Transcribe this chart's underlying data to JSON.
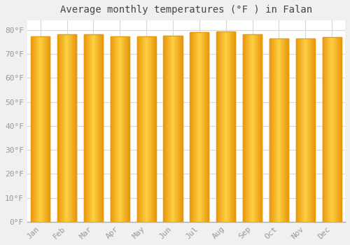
{
  "months": [
    "Jan",
    "Feb",
    "Mar",
    "Apr",
    "May",
    "Jun",
    "Jul",
    "Aug",
    "Sep",
    "Oct",
    "Nov",
    "Dec"
  ],
  "values": [
    77.2,
    78.3,
    78.3,
    77.2,
    77.4,
    77.5,
    79.0,
    79.3,
    78.1,
    76.3,
    76.3,
    77.0
  ],
  "bar_color_edge": "#E8980A",
  "bar_color_center": "#FFD045",
  "bar_color_mid": "#FFAA10",
  "background_color": "#F0F0F0",
  "plot_bg_color": "#FFFFFF",
  "grid_color": "#D8D8D8",
  "title": "Average monthly temperatures (°F ) in Falan",
  "title_fontsize": 10,
  "yticks": [
    0,
    10,
    20,
    30,
    40,
    50,
    60,
    70,
    80
  ],
  "ylim": [
    0,
    84
  ],
  "tick_fontsize": 8,
  "tick_color": "#999999",
  "font_family": "monospace"
}
